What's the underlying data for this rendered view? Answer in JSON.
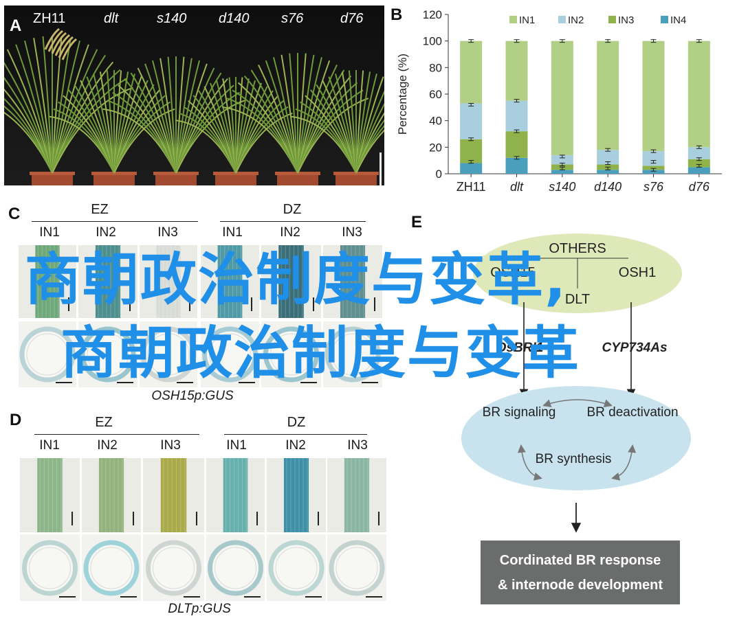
{
  "panel_letters": {
    "a": "A",
    "b": "B",
    "c": "C",
    "d": "D",
    "e": "E"
  },
  "panelA": {
    "labels": [
      "ZH11",
      "dlt",
      "s140",
      "d140",
      "s76",
      "d76"
    ]
  },
  "chart_data": {
    "type": "bar",
    "stacked": true,
    "categories": [
      "ZH11",
      "dlt",
      "s140",
      "d140",
      "s76",
      "d76"
    ],
    "ylabel": "Percentage (%)",
    "ylim": [
      0,
      120
    ],
    "yticks": [
      0,
      20,
      40,
      60,
      80,
      100,
      120
    ],
    "legend_position": "top",
    "series": [
      {
        "name": "IN4",
        "color": "#4aa0bc",
        "values": [
          8,
          12,
          3,
          3,
          3,
          5
        ]
      },
      {
        "name": "IN3",
        "color": "#8fb34a",
        "values": [
          18,
          20,
          4,
          4,
          3,
          6
        ]
      },
      {
        "name": "IN2",
        "color": "#a9cfdf",
        "values": [
          27,
          23,
          7,
          11,
          11,
          9
        ]
      },
      {
        "name": "IN1",
        "color": "#b2cf86",
        "values": [
          47,
          45,
          86,
          82,
          83,
          80
        ]
      }
    ],
    "error_positions": [
      [
        9,
        26,
        52,
        100
      ],
      [
        12,
        32,
        55,
        100
      ],
      [
        4,
        7,
        13,
        100
      ],
      [
        4,
        8,
        18,
        100
      ],
      [
        3,
        9,
        17,
        100
      ],
      [
        6,
        11,
        20,
        100
      ]
    ]
  },
  "panelC": {
    "groups": [
      "EZ",
      "DZ"
    ],
    "internodes": [
      "IN1",
      "IN2",
      "IN3",
      "IN1",
      "IN2",
      "IN3"
    ],
    "caption": "OSH15p:GUS"
  },
  "panelD": {
    "groups": [
      "EZ",
      "DZ"
    ],
    "internodes": [
      "IN1",
      "IN2",
      "IN3",
      "IN1",
      "IN2",
      "IN3"
    ],
    "caption": "DLTp:GUS"
  },
  "panelE": {
    "others": "OTHERS",
    "osh15": "OSH15",
    "osh1": "OSH1",
    "dlt": "DLT",
    "osbri1": "OsBRI1",
    "cyp": "CYP734As",
    "br_signaling": "BR signaling",
    "br_deactivation": "BR deactivation",
    "br_synthesis": "BR synthesis",
    "response_line1": "Cordinated BR response",
    "response_line2": "& internode development"
  },
  "watermark": {
    "line1": "商朝政治制度与变革,",
    "line2": "商朝政治制度与变革"
  },
  "colors": {
    "watermark": "#1f8fe8",
    "ellipse_top": "#dfe8b9",
    "ellipse_bottom": "#c8e3ee",
    "response_box": "#6b6c6c"
  }
}
